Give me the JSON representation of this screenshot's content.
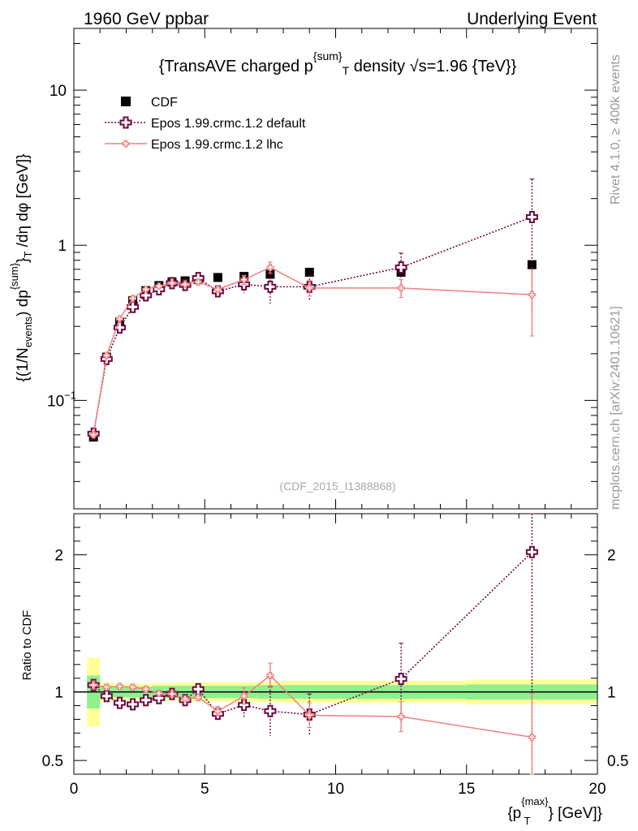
{
  "header": {
    "left": "1960 GeV ppbar",
    "right": "Underlying Event"
  },
  "side_labels": {
    "rivet": "Rivet 4.1.0, ≥ 400k events",
    "mcplots": "mcplots.cern.ch [arXiv:2401.10621]"
  },
  "analysis_id": "(CDF_2015_I1388868)",
  "colors": {
    "data": "#000000",
    "default": "#6b0a40",
    "lhc": "#f08080",
    "band_inner": "#90f090",
    "band_outer": "#ffff99"
  },
  "chart_data": [
    {
      "type": "scatter",
      "title": "{TransAVE charged p^{sum}_T density √s=1.96 {TeV}}",
      "title_parts": {
        "a": "{TransAVE charged p",
        "sup": "{sum}",
        "sub": "T",
        "b": " density √s=1.96 {TeV}}"
      },
      "ylabel": "{(1/N_events) dp^{sum}_T /dη dφ [GeV]}",
      "ylabel_parts": {
        "a": "{(1/N",
        "sub1": "events",
        "b": ") dp",
        "sup": "{sum}",
        "c": "}",
        "sub2": "T",
        "d": " /dη  dφ [GeV]}"
      },
      "yscale": "log",
      "xlim": [
        0,
        20
      ],
      "ylim": [
        0.02,
        25
      ],
      "yticks": [
        {
          "value": 0.1,
          "base": "10",
          "exp": "−1"
        },
        {
          "value": 1,
          "label": "1"
        },
        {
          "value": 10,
          "label": "10"
        }
      ],
      "legend": [
        {
          "key": "cdf",
          "label": "CDF"
        },
        {
          "key": "default",
          "label": "Epos 1.99.crmc.1.2 default"
        },
        {
          "key": "lhc",
          "label": "Epos 1.99.crmc.1.2 lhc"
        }
      ],
      "series": [
        {
          "key": "cdf",
          "name": "CDF",
          "x": [
            0.75,
            1.25,
            1.75,
            2.25,
            2.75,
            3.25,
            3.75,
            4.25,
            4.75,
            5.5,
            6.5,
            7.5,
            9.0,
            12.5,
            17.5
          ],
          "y": [
            0.058,
            0.19,
            0.32,
            0.44,
            0.51,
            0.55,
            0.58,
            0.59,
            0.6,
            0.62,
            0.63,
            0.65,
            0.67,
            0.67,
            0.75
          ]
        },
        {
          "key": "default",
          "name": "Epos 1.99.crmc.1.2 default",
          "x": [
            0.75,
            1.25,
            1.75,
            2.25,
            2.75,
            3.25,
            3.75,
            4.25,
            4.75,
            5.5,
            6.5,
            7.5,
            9.0,
            12.5,
            17.5
          ],
          "y": [
            0.061,
            0.185,
            0.295,
            0.4,
            0.475,
            0.52,
            0.57,
            0.555,
            0.615,
            0.505,
            0.56,
            0.54,
            0.54,
            0.72,
            1.52
          ],
          "err": [
            0.002,
            0.004,
            0.006,
            0.008,
            0.01,
            0.01,
            0.012,
            0.012,
            0.015,
            0.02,
            0.07,
            0.12,
            0.1,
            0.17,
            1.15
          ]
        },
        {
          "key": "lhc",
          "name": "Epos 1.99.crmc.1.2 lhc",
          "x": [
            0.75,
            1.25,
            1.75,
            2.25,
            2.75,
            3.25,
            3.75,
            4.25,
            4.75,
            5.5,
            6.5,
            7.5,
            9.0,
            12.5,
            17.5
          ],
          "y": [
            0.06,
            0.195,
            0.335,
            0.455,
            0.52,
            0.545,
            0.57,
            0.56,
            0.58,
            0.52,
            0.6,
            0.72,
            0.53,
            0.53,
            0.48
          ],
          "err": [
            0.002,
            0.004,
            0.006,
            0.008,
            0.01,
            0.01,
            0.012,
            0.012,
            0.015,
            0.02,
            0.04,
            0.06,
            0.06,
            0.07,
            0.22
          ]
        }
      ]
    },
    {
      "type": "scatter",
      "title": "",
      "ylabel": "Ratio to CDF",
      "xlabel": "{p_T^{max}} [GeV]}",
      "xlabel_parts": {
        "a": "{p",
        "sup": "{max}",
        "sub": "T",
        "b": "} [GeV]}"
      },
      "xlim": [
        0,
        20
      ],
      "ylim": [
        0.4,
        2.3
      ],
      "xticks": [
        0,
        5,
        10,
        15,
        20
      ],
      "yticks_left": [
        {
          "value": 0.5,
          "label": "0.5"
        },
        {
          "value": 1,
          "label": "1"
        },
        {
          "value": 2,
          "label": "2"
        }
      ],
      "yticks_right": [
        {
          "value": 0.5,
          "label": "0.5"
        },
        {
          "value": 1,
          "label": "1"
        },
        {
          "value": 2,
          "label": "2"
        }
      ],
      "reference_line": 1,
      "bands": {
        "x_edges": [
          0.5,
          1.0,
          1.5,
          2.0,
          2.5,
          3.0,
          3.5,
          4.0,
          4.5,
          5.0,
          6.0,
          7.0,
          8.0,
          10.0,
          15.0,
          20.0
        ],
        "inner": [
          0.12,
          0.045,
          0.04,
          0.04,
          0.04,
          0.045,
          0.045,
          0.045,
          0.045,
          0.045,
          0.045,
          0.05,
          0.05,
          0.05,
          0.055
        ],
        "outer": [
          0.25,
          0.07,
          0.06,
          0.06,
          0.06,
          0.065,
          0.065,
          0.07,
          0.07,
          0.07,
          0.07,
          0.075,
          0.08,
          0.08,
          0.09
        ]
      },
      "series": [
        {
          "key": "default",
          "name": "Epos 1.99.crmc.1.2 default",
          "x": [
            0.75,
            1.25,
            1.75,
            2.25,
            2.75,
            3.25,
            3.75,
            4.25,
            4.75,
            5.5,
            6.5,
            7.5,
            9.0,
            12.5,
            17.5
          ],
          "y": [
            1.05,
            0.97,
            0.92,
            0.91,
            0.94,
            0.955,
            0.985,
            0.94,
            1.02,
            0.84,
            0.905,
            0.86,
            0.835,
            1.095,
            2.02
          ],
          "err": [
            0.03,
            0.02,
            0.02,
            0.02,
            0.02,
            0.02,
            0.02,
            0.02,
            0.025,
            0.04,
            0.09,
            0.18,
            0.15,
            0.26,
            1.5
          ]
        },
        {
          "key": "lhc",
          "name": "Epos 1.99.crmc.1.2 lhc",
          "x": [
            0.75,
            1.25,
            1.75,
            2.25,
            2.75,
            3.25,
            3.75,
            4.25,
            4.75,
            5.5,
            6.5,
            7.5,
            9.0,
            12.5,
            17.5
          ],
          "y": [
            1.05,
            1.035,
            1.04,
            1.035,
            1.02,
            0.99,
            0.985,
            0.95,
            0.96,
            0.86,
            0.97,
            1.12,
            0.83,
            0.82,
            0.67
          ],
          "err": [
            0.03,
            0.02,
            0.02,
            0.02,
            0.02,
            0.02,
            0.02,
            0.02,
            0.025,
            0.035,
            0.06,
            0.09,
            0.09,
            0.11,
            0.32
          ]
        }
      ]
    }
  ]
}
